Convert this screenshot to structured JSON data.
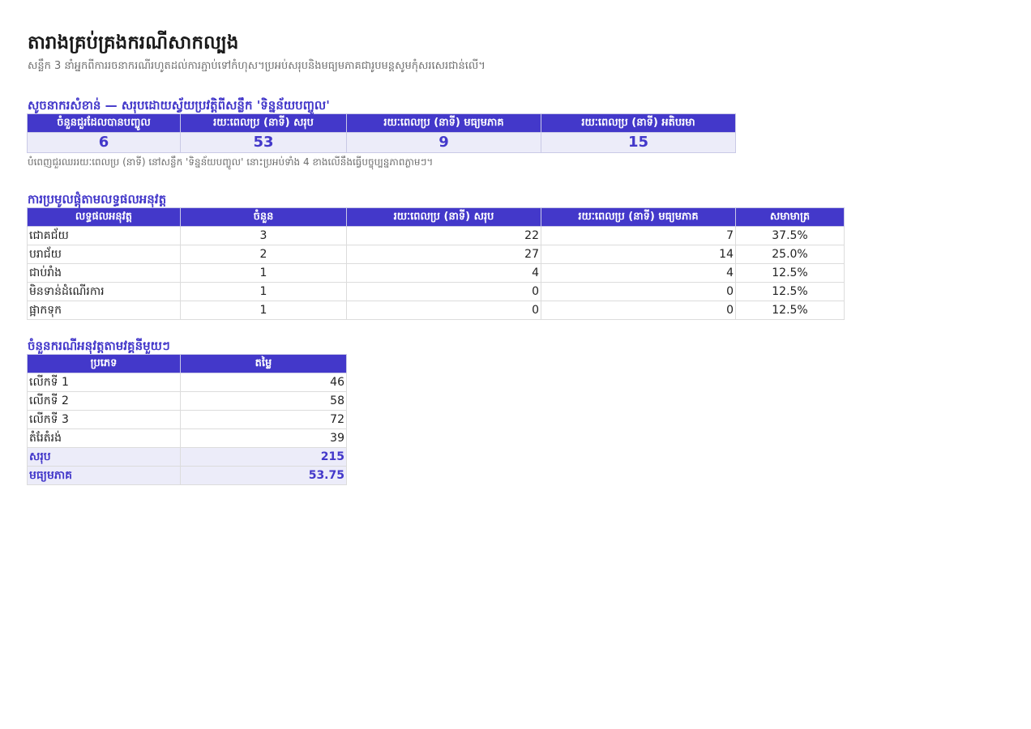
{
  "page": {
    "title": "តារាងគ្រប់គ្រងករណីសាកល្បង",
    "subtitle": "សន្លឹក 3 នាំអ្នកពីការរចនាករណីរហូតដល់ការភ្ជាប់ទៅកំហុស។ប្រអប់សរុបនិងមធ្យមភាគជារូបមន្តសូមកុំសរសេរជាន់លើ។"
  },
  "kpi": {
    "heading": "សូចនាករសំខាន់ — សរុបដោយស្វ័យប្រវត្តិពីសន្លឹក 'ទិន្នន័យបញ្ចូល'",
    "columns": [
      "ចំនួនជួរដែលបានបញ្ចូល",
      "រយៈពេលប្រ (នាទី) សរុប",
      "រយៈពេលប្រ (នាទី) មធ្យមភាគ",
      "រយៈពេលប្រ (នាទី) អតិបរមា"
    ],
    "values": [
      "6",
      "53",
      "9",
      "15"
    ],
    "note": "បំពេញជួរឈររយៈពេលប្រ (នាទី) នៅសន្លឹក 'ទិន្នន័យបញ្ចូល' នោះប្រអប់ទាំង 4 ខាងលើនឹងធ្វើបច្ចុប្បន្នភាពភ្លាមៗ។"
  },
  "outcomes": {
    "heading": "ការប្រមូលផ្តុំតាមលទ្ធផលអនុវត្ត",
    "columns": [
      "លទ្ធផលអនុវត្ត",
      "ចំនួន",
      "រយៈពេលប្រ (នាទី) សរុប",
      "រយៈពេលប្រ (នាទី) មធ្យមភាគ",
      "សមាមាត្រ"
    ],
    "rows": [
      {
        "label": "ជោគជ័យ",
        "count": "3",
        "total": "22",
        "avg": "7",
        "ratio": "37.5%"
      },
      {
        "label": "បរាជ័យ",
        "count": "2",
        "total": "27",
        "avg": "14",
        "ratio": "25.0%"
      },
      {
        "label": "ជាប់រាំង",
        "count": "1",
        "total": "4",
        "avg": "4",
        "ratio": "12.5%"
      },
      {
        "label": "មិនទាន់ដំណើរការ",
        "count": "1",
        "total": "0",
        "avg": "0",
        "ratio": "12.5%"
      },
      {
        "label": "ផ្អាកទុក",
        "count": "1",
        "total": "0",
        "avg": "0",
        "ratio": "12.5%"
      }
    ]
  },
  "cycles": {
    "heading": "ចំនួនករណីអនុវត្តតាមវគ្គនីមួយៗ",
    "columns": [
      "ប្រភេទ",
      "តម្លៃ"
    ],
    "rows": [
      {
        "label": "លើកទី 1",
        "value": "46"
      },
      {
        "label": "លើកទី 2",
        "value": "58"
      },
      {
        "label": "លើកទី 3",
        "value": "72"
      },
      {
        "label": "តំរែតំរង់",
        "value": "39"
      }
    ],
    "total": {
      "label": "សរុប",
      "value": "215"
    },
    "average": {
      "label": "មធ្យមភាគ",
      "value": "53.75"
    }
  }
}
